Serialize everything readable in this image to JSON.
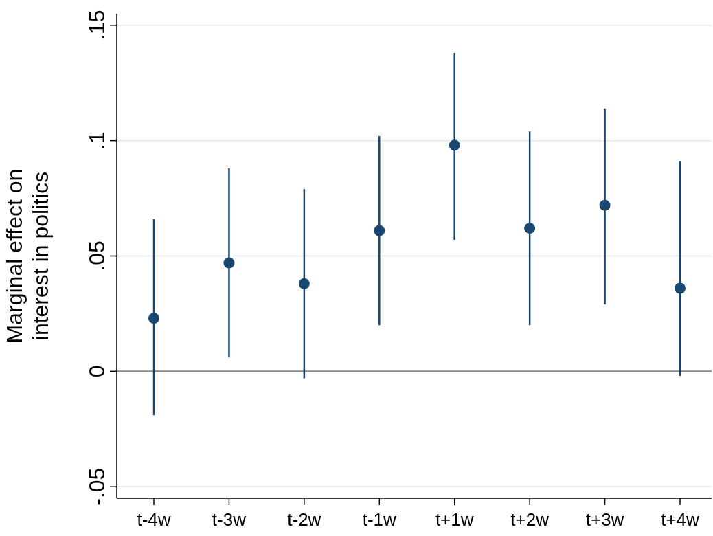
{
  "chart_data": {
    "type": "scatter",
    "ylabel": "Marginal effect on\ninterest in politics",
    "categories": [
      "t-4w",
      "t-3w",
      "t-2w",
      "t-1w",
      "t+1w",
      "t+2w",
      "t+3w",
      "t+4w"
    ],
    "series": [
      {
        "color": "#1a476f",
        "values": [
          0.023,
          0.047,
          0.038,
          0.061,
          0.098,
          0.062,
          0.072,
          0.036
        ],
        "errors": [
          [
            -0.019,
            0.066
          ],
          [
            0.006,
            0.088
          ],
          [
            -0.003,
            0.079
          ],
          [
            0.02,
            0.102
          ],
          [
            0.057,
            0.138
          ],
          [
            0.02,
            0.104
          ],
          [
            0.029,
            0.114
          ],
          [
            -0.002,
            0.091
          ]
        ]
      }
    ],
    "ylim": [
      -0.055,
      0.155
    ],
    "yticks": [
      {
        "value": -0.05,
        "label": "-.05"
      },
      0,
      {
        "value": 0.05,
        "label": ".05"
      },
      {
        "value": 0.1,
        "label": ".1"
      },
      {
        "value": 0.15,
        "label": ".15"
      }
    ],
    "grid": "y",
    "marker": "circle",
    "ref_lines": [
      {
        "axis": "y",
        "value": 0,
        "color": "#8a8a8a"
      }
    ]
  }
}
